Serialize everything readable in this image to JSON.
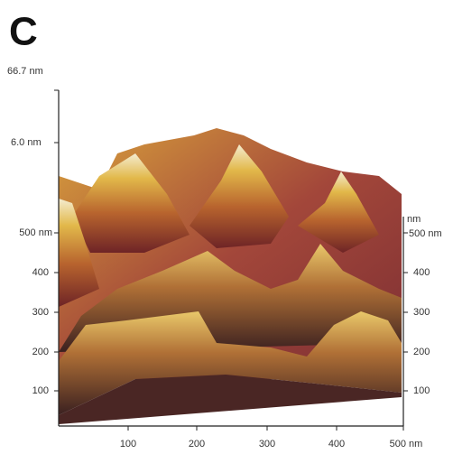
{
  "panel_label": "C",
  "z_axis": {
    "top_label": "66.7 nm",
    "scale_label": "6.0 nm"
  },
  "left_axis": {
    "ticks": [
      "500 nm",
      "400",
      "300",
      "200",
      "100"
    ]
  },
  "right_axis": {
    "unit": "nm",
    "ticks": [
      "500 nm",
      "400",
      "300",
      "200",
      "100"
    ]
  },
  "bottom_axis": {
    "ticks": [
      "100",
      "200",
      "300",
      "400",
      "500 nm"
    ]
  }
}
